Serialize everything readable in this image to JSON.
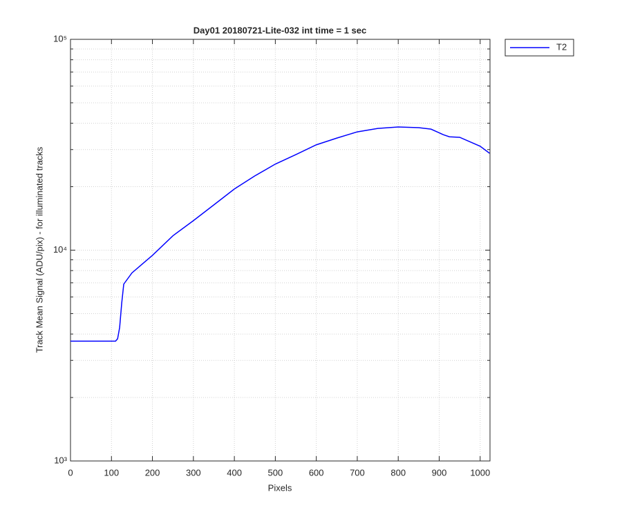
{
  "chart_data": {
    "type": "line",
    "title": "Day01 20180721-Lite-032 int time = 1 sec",
    "xlabel": "Pixels",
    "ylabel": "Track Mean Signal (ADU/pix) - for illuminated tracks",
    "x": [
      0,
      50,
      110,
      115,
      120,
      125,
      130,
      150,
      200,
      250,
      300,
      350,
      400,
      450,
      500,
      550,
      600,
      650,
      700,
      750,
      800,
      850,
      880,
      910,
      925,
      950,
      1000,
      1023
    ],
    "series": [
      {
        "name": "T2",
        "color": "#0000ff",
        "values": [
          3700,
          3700,
          3700,
          3800,
          4300,
          5600,
          6900,
          7800,
          9450,
          11700,
          13800,
          16400,
          19500,
          22500,
          25600,
          28400,
          31600,
          34000,
          36400,
          37800,
          38400,
          38100,
          37500,
          35300,
          34500,
          34300,
          31100,
          28800
        ]
      }
    ],
    "xlim": [
      0,
      1024
    ],
    "xticks": [
      0,
      100,
      200,
      300,
      400,
      500,
      600,
      700,
      800,
      900,
      1000
    ],
    "ylim": [
      1000,
      100000
    ],
    "yticks": [
      {
        "value": 1000,
        "label": "10³"
      },
      {
        "value": 10000,
        "label": "10⁴"
      },
      {
        "value": 100000,
        "label": "10⁵"
      }
    ],
    "yminorticks": [
      2000,
      3000,
      4000,
      5000,
      6000,
      7000,
      8000,
      9000,
      20000,
      30000,
      40000,
      50000,
      60000,
      70000,
      80000,
      90000
    ],
    "log_y": true,
    "grid": true,
    "legend": "outside-top-right"
  }
}
